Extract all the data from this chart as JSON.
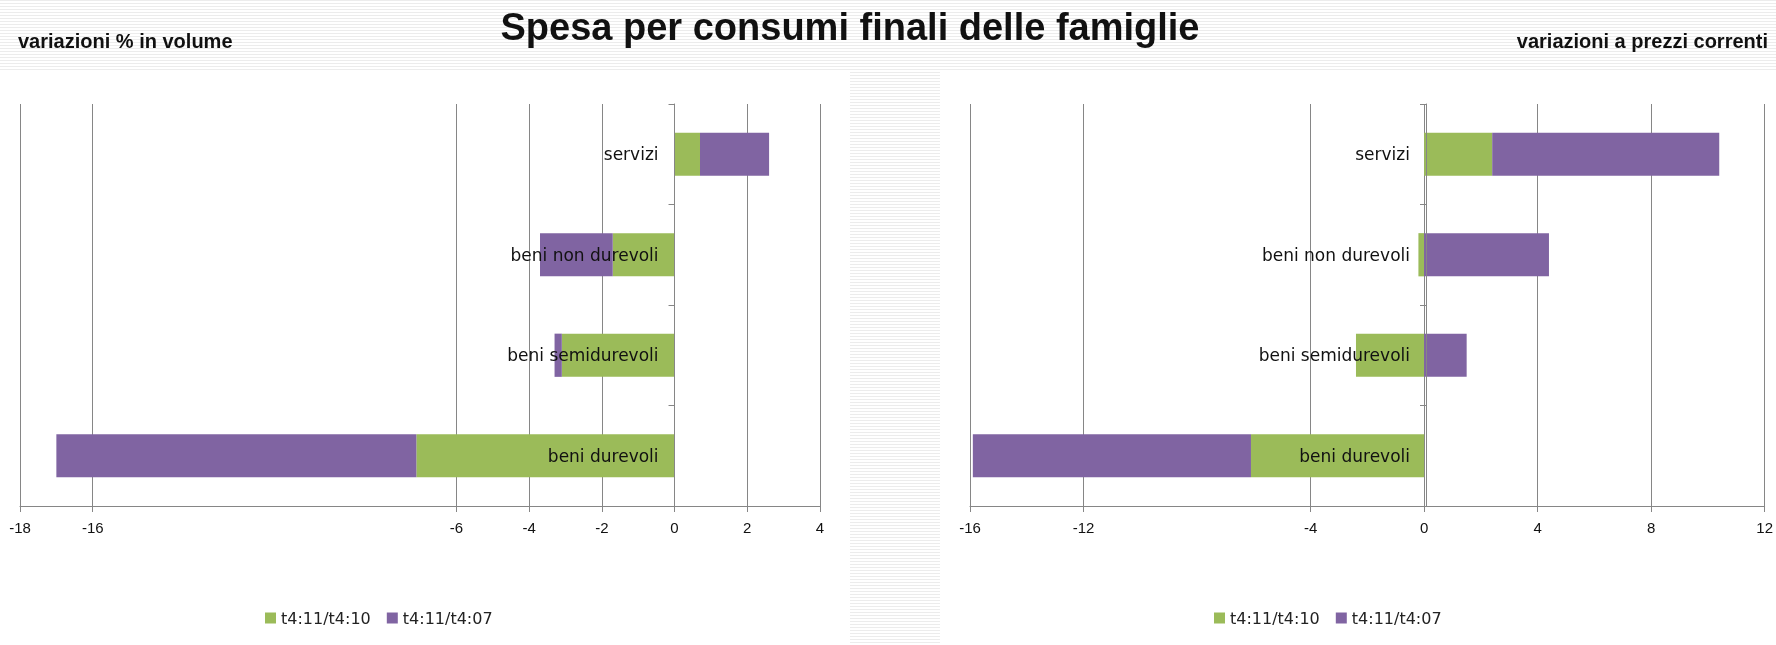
{
  "chart_data": [
    {
      "type": "bar",
      "title": "Spesa per consumi finali delle famiglie",
      "subtitle": "variazioni % in volume",
      "orientation": "horizontal",
      "stacked": true,
      "categories": [
        "servizi",
        "beni non durevoli",
        "beni semidurevoli",
        "beni durevoli"
      ],
      "series": [
        {
          "name": "t4:11/t4:10",
          "color": "#9bbb59",
          "values": [
            0.7,
            -1.7,
            -3.1,
            -7.1
          ]
        },
        {
          "name": "t4:11/t4:07",
          "color": "#8064a2",
          "values": [
            1.9,
            -2.0,
            -0.2,
            -9.9
          ]
        }
      ],
      "xlim": [
        -18,
        4
      ],
      "xticks": [
        -18,
        -16,
        -6,
        -4,
        -2,
        0,
        2,
        4
      ],
      "grid": "x",
      "legend": "bottom"
    },
    {
      "type": "bar",
      "subtitle": "variazioni a prezzi correnti",
      "orientation": "horizontal",
      "stacked": true,
      "categories": [
        "servizi",
        "beni non durevoli",
        "beni semidurevoli",
        "beni durevoli"
      ],
      "series": [
        {
          "name": "t4:11/t4:10",
          "color": "#9bbb59",
          "values": [
            2.4,
            -0.2,
            -2.4,
            -6.1
          ]
        },
        {
          "name": "t4:11/t4:07",
          "color": "#8064a2",
          "values": [
            8.0,
            4.4,
            1.5,
            -9.8
          ]
        }
      ],
      "xlim": [
        -16,
        12
      ],
      "xticks": [
        -16,
        -12,
        -4,
        0,
        4,
        8,
        12
      ],
      "grid": "x",
      "legend": "bottom"
    }
  ]
}
